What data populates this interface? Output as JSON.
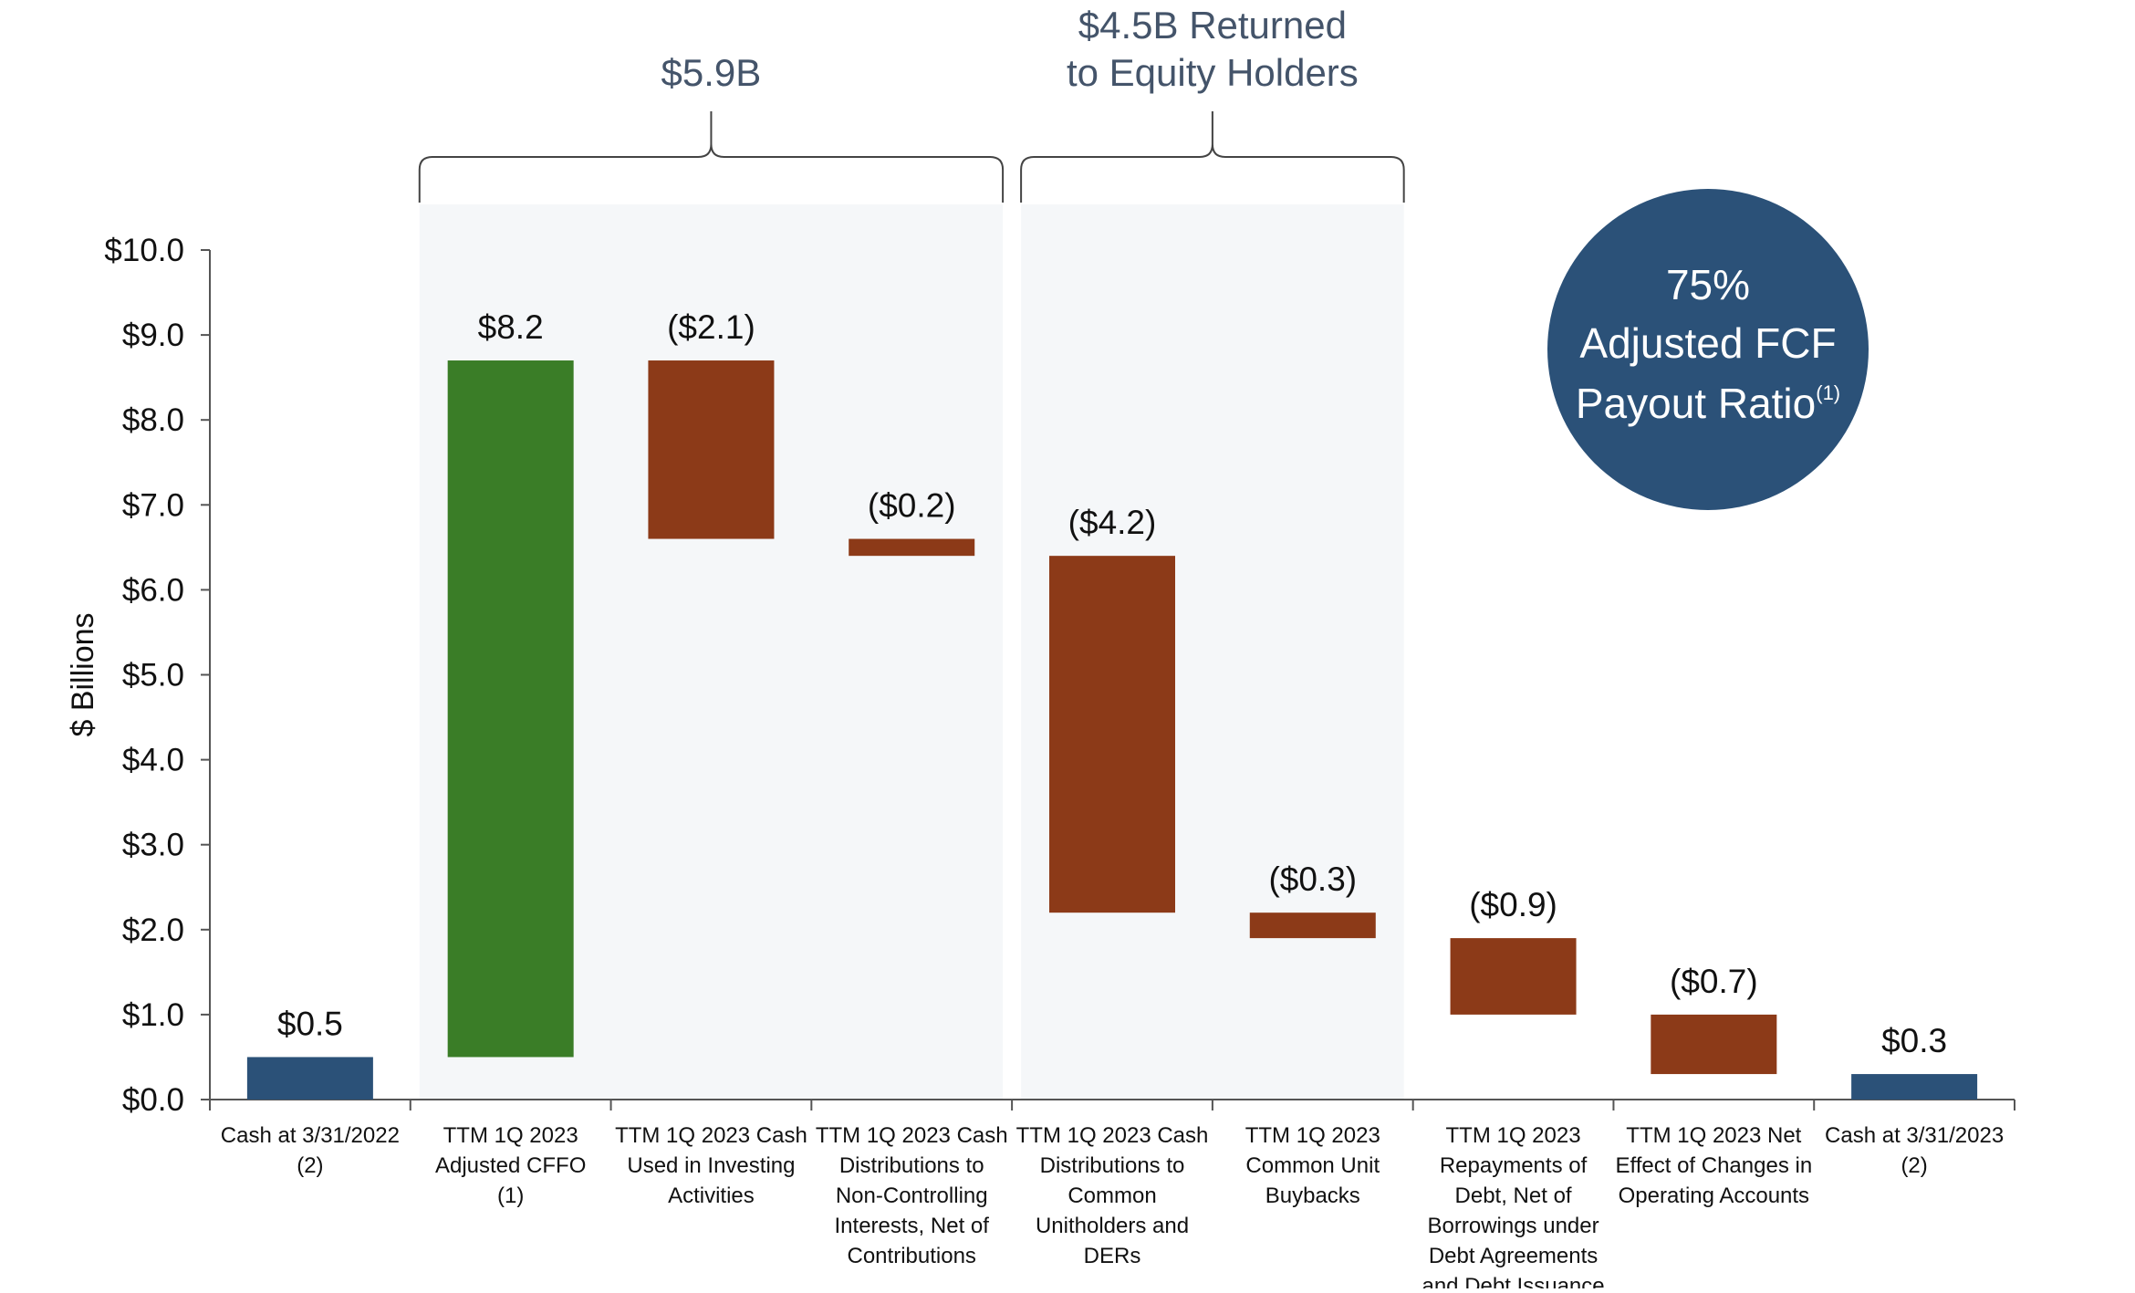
{
  "chart_data": {
    "type": "bar",
    "subtype": "waterfall",
    "ylabel": "$ Billions",
    "ylim": [
      0,
      10
    ],
    "yticks": [
      0,
      1,
      2,
      3,
      4,
      5,
      6,
      7,
      8,
      9,
      10
    ],
    "ytick_labels": [
      "$0.0",
      "$1.0",
      "$2.0",
      "$3.0",
      "$4.0",
      "$5.0",
      "$6.0",
      "$7.0",
      "$8.0",
      "$9.0",
      "$10.0"
    ],
    "grid": false,
    "categories": [
      [
        "Cash at 3/31/2022",
        "(2)"
      ],
      [
        "TTM 1Q 2023",
        "Adjusted CFFO",
        "(1)"
      ],
      [
        "TTM 1Q 2023 Cash",
        "Used in Investing",
        "Activities"
      ],
      [
        "TTM 1Q 2023 Cash",
        "Distributions to",
        "Non-Controlling",
        "Interests, Net of",
        "Contributions"
      ],
      [
        "TTM 1Q 2023 Cash",
        "Distributions to",
        "Common",
        "Unitholders and",
        "DERs"
      ],
      [
        "TTM 1Q 2023",
        "Common Unit",
        "Buybacks"
      ],
      [
        "TTM 1Q 2023",
        "Repayments of",
        "Debt, Net of",
        "Borrowings under",
        "Debt Agreements",
        "and Debt Issuance"
      ],
      [
        "TTM 1Q 2023 Net",
        "Effect of Changes in",
        "Operating Accounts"
      ],
      [
        "Cash at 3/31/2023",
        "(2)"
      ]
    ],
    "bars": [
      {
        "label": "$0.5",
        "bottom": 0.0,
        "top": 0.5,
        "kind": "total"
      },
      {
        "label": "$8.2",
        "bottom": 0.5,
        "top": 8.7,
        "kind": "increase"
      },
      {
        "label": "($2.1)",
        "bottom": 6.6,
        "top": 8.7,
        "kind": "decrease"
      },
      {
        "label": "($0.2)",
        "bottom": 6.4,
        "top": 6.6,
        "kind": "decrease"
      },
      {
        "label": "($4.2)",
        "bottom": 2.2,
        "top": 6.4,
        "kind": "decrease"
      },
      {
        "label": "($0.3)",
        "bottom": 1.9,
        "top": 2.2,
        "kind": "decrease"
      },
      {
        "label": "($0.9)",
        "bottom": 1.0,
        "top": 1.9,
        "kind": "decrease"
      },
      {
        "label": "($0.7)",
        "bottom": 0.3,
        "top": 1.0,
        "kind": "decrease"
      },
      {
        "label": "$0.3",
        "bottom": 0.0,
        "top": 0.3,
        "kind": "total"
      }
    ],
    "groups": [
      {
        "lines": [
          "$5.9B"
        ],
        "from": 1,
        "to": 3
      },
      {
        "lines": [
          "$4.5B Returned",
          "to Equity Holders"
        ],
        "from": 4,
        "to": 5
      }
    ],
    "callout": {
      "lines": [
        "75%",
        "Adjusted FCF",
        "Payout Ratio"
      ],
      "superscript": "(1)"
    },
    "colors": {
      "total": "#2b5178",
      "increase": "#3a7d27",
      "decrease": "#8c3a18",
      "group_shade": "#f5f7f9",
      "axis": "#555555",
      "callout_fill": "#2b5178"
    }
  }
}
